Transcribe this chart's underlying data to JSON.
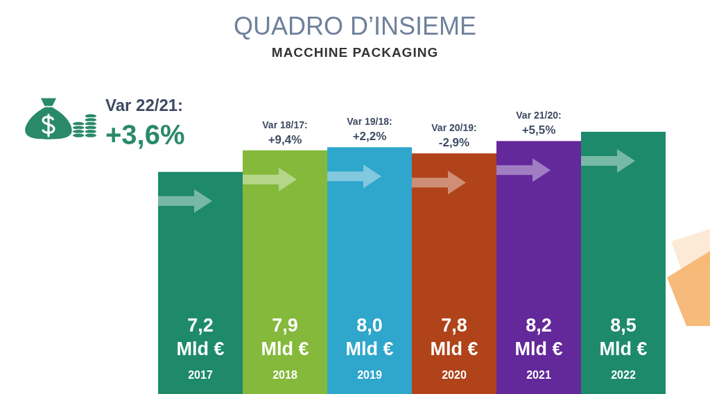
{
  "chart_data": {
    "type": "bar",
    "title": "QUADRO D’INSIEME",
    "subtitle": "MACCHINE PACKAGING",
    "categories": [
      "2017",
      "2018",
      "2019",
      "2020",
      "2021",
      "2022"
    ],
    "values": [
      7.2,
      7.9,
      8.0,
      7.8,
      8.2,
      8.5
    ],
    "colors": [
      "#1e8a6a",
      "#84b93b",
      "#2fa6cb",
      "#b0431a",
      "#63289a",
      "#1e8a6c"
    ],
    "value_labels": [
      "7,2\nMld €",
      "7,9\nMld €",
      "8,0\nMld €",
      "7,8\nMld €",
      "8,2\nMld €",
      "8,5\nMld €"
    ],
    "tick_labels": "x",
    "annotations": [
      "Var 22/21:\n+3,6%",
      {
        "text": "Var 18/17:\n+9,4%",
        "x": "2018",
        "y": 7.9
      },
      {
        "text": "Var 19/18:\n+2,2%",
        "x": "2019",
        "y": 8.0
      },
      {
        "text": "Var 20/19:\n-2,9%",
        "x": "2020",
        "y": 7.8
      },
      {
        "text": "Var 21/20:\n+5,5%",
        "x": "2021",
        "y": 8.2
      }
    ]
  }
}
